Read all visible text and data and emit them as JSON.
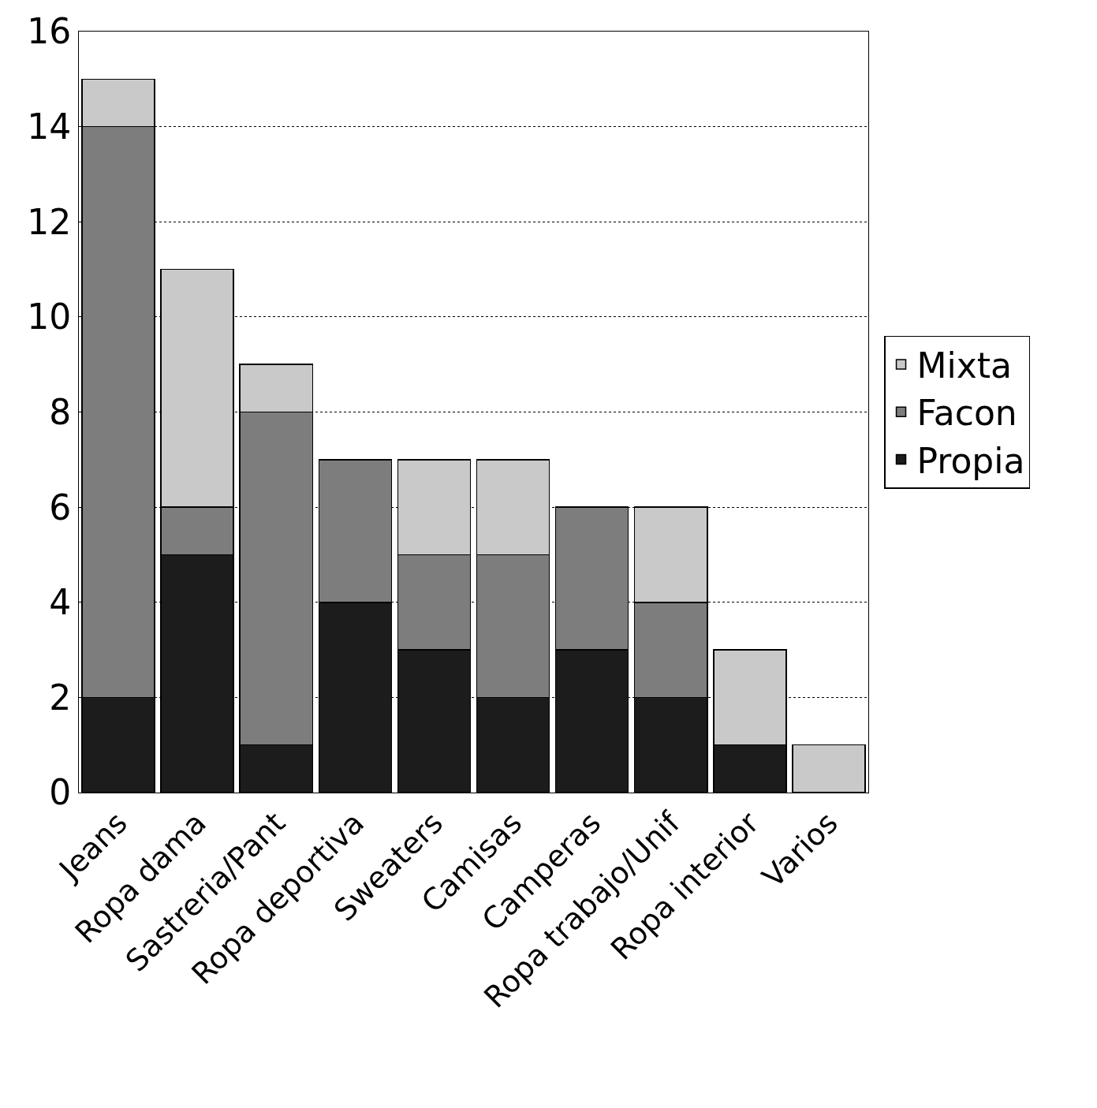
{
  "chart_data": {
    "type": "bar",
    "stacked": true,
    "categories": [
      "Jeans",
      "Ropa dama",
      "Sastreria/Pant",
      "Ropa deportiva",
      "Sweaters",
      "Camisas",
      "Camperas",
      "Ropa trabajo/Unif",
      "Ropa interior",
      "Varios"
    ],
    "series": [
      {
        "name": "Propia",
        "color": "#1c1c1c",
        "values": [
          2,
          5,
          1,
          4,
          3,
          2,
          3,
          2,
          1,
          0
        ]
      },
      {
        "name": "Facon",
        "color": "#7d7d7d",
        "values": [
          12,
          1,
          7,
          3,
          2,
          3,
          3,
          2,
          0,
          0
        ]
      },
      {
        "name": "Mixta",
        "color": "#c9c9c9",
        "values": [
          1,
          5,
          1,
          0,
          2,
          2,
          0,
          2,
          2,
          1
        ]
      }
    ],
    "ylim": [
      0,
      16
    ],
    "yticks": [
      0,
      2,
      4,
      6,
      8,
      10,
      12,
      14,
      16
    ],
    "grid": "y",
    "legend": "right"
  }
}
